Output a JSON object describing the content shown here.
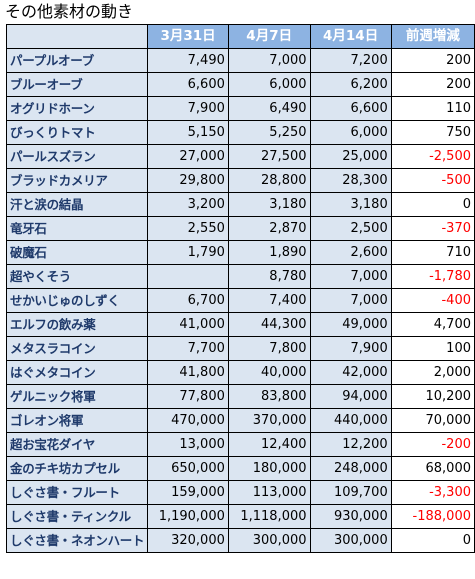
{
  "title": "その他素材の動き",
  "columns": [
    "",
    "3月31日",
    "4月7日",
    "4月14日",
    "前週増減"
  ],
  "rows": [
    {
      "name": "パープルオーブ",
      "mar31": "7,490",
      "apr7": "7,000",
      "apr14": "7,200",
      "diff": "200"
    },
    {
      "name": "ブルーオーブ",
      "mar31": "6,600",
      "apr7": "6,000",
      "apr14": "6,200",
      "diff": "200"
    },
    {
      "name": "オグリドホーン",
      "mar31": "7,900",
      "apr7": "6,490",
      "apr14": "6,600",
      "diff": "110"
    },
    {
      "name": "びっくりトマト",
      "mar31": "5,150",
      "apr7": "5,250",
      "apr14": "6,000",
      "diff": "750"
    },
    {
      "name": "パールスズラン",
      "mar31": "27,000",
      "apr7": "27,500",
      "apr14": "25,000",
      "diff": "-2,500"
    },
    {
      "name": "ブラッドカメリア",
      "mar31": "29,800",
      "apr7": "28,800",
      "apr14": "28,300",
      "diff": "-500"
    },
    {
      "name": "汗と涙の結晶",
      "mar31": "3,200",
      "apr7": "3,180",
      "apr14": "3,180",
      "diff": "0"
    },
    {
      "name": "竜牙石",
      "mar31": "2,550",
      "apr7": "2,870",
      "apr14": "2,500",
      "diff": "-370"
    },
    {
      "name": "破魔石",
      "mar31": "1,790",
      "apr7": "1,890",
      "apr14": "2,600",
      "diff": "710"
    },
    {
      "name": "超やくそう",
      "mar31": "",
      "apr7": "8,780",
      "apr14": "7,000",
      "diff": "-1,780"
    },
    {
      "name": "せかいじゅのしずく",
      "mar31": "6,700",
      "apr7": "7,400",
      "apr14": "7,000",
      "diff": "-400"
    },
    {
      "name": "エルフの飲み薬",
      "mar31": "41,000",
      "apr7": "44,300",
      "apr14": "49,000",
      "diff": "4,700"
    },
    {
      "name": "メタスラコイン",
      "mar31": "7,700",
      "apr7": "7,800",
      "apr14": "7,900",
      "diff": "100"
    },
    {
      "name": "はぐメタコイン",
      "mar31": "41,800",
      "apr7": "40,000",
      "apr14": "42,000",
      "diff": "2,000"
    },
    {
      "name": "ゲルニック将軍",
      "mar31": "77,800",
      "apr7": "83,800",
      "apr14": "94,000",
      "diff": "10,200"
    },
    {
      "name": "ゴレオン将軍",
      "mar31": "470,000",
      "apr7": "370,000",
      "apr14": "440,000",
      "diff": "70,000"
    },
    {
      "name": "超お宝花ダイヤ",
      "mar31": "13,000",
      "apr7": "12,400",
      "apr14": "12,200",
      "diff": "-200"
    },
    {
      "name": "金のチキ坊カプセル",
      "mar31": "650,000",
      "apr7": "180,000",
      "apr14": "248,000",
      "diff": "68,000"
    },
    {
      "name": "しぐさ書・フルート",
      "mar31": "159,000",
      "apr7": "113,000",
      "apr14": "109,700",
      "diff": "-3,300"
    },
    {
      "name": "しぐさ書・ティンクル",
      "mar31": "1,190,000",
      "apr7": "1,118,000",
      "apr14": "930,000",
      "diff": "-188,000"
    },
    {
      "name": "しぐさ書・ネオンハート",
      "mar31": "320,000",
      "apr7": "300,000",
      "apr14": "300,000",
      "diff": "0"
    }
  ],
  "colors": {
    "header_bg": "#8db3e2",
    "header_text": "#ffffff",
    "cell_bg": "#dbe5f1",
    "name_text": "#1f3a6b",
    "negative_text": "#ff0000"
  }
}
